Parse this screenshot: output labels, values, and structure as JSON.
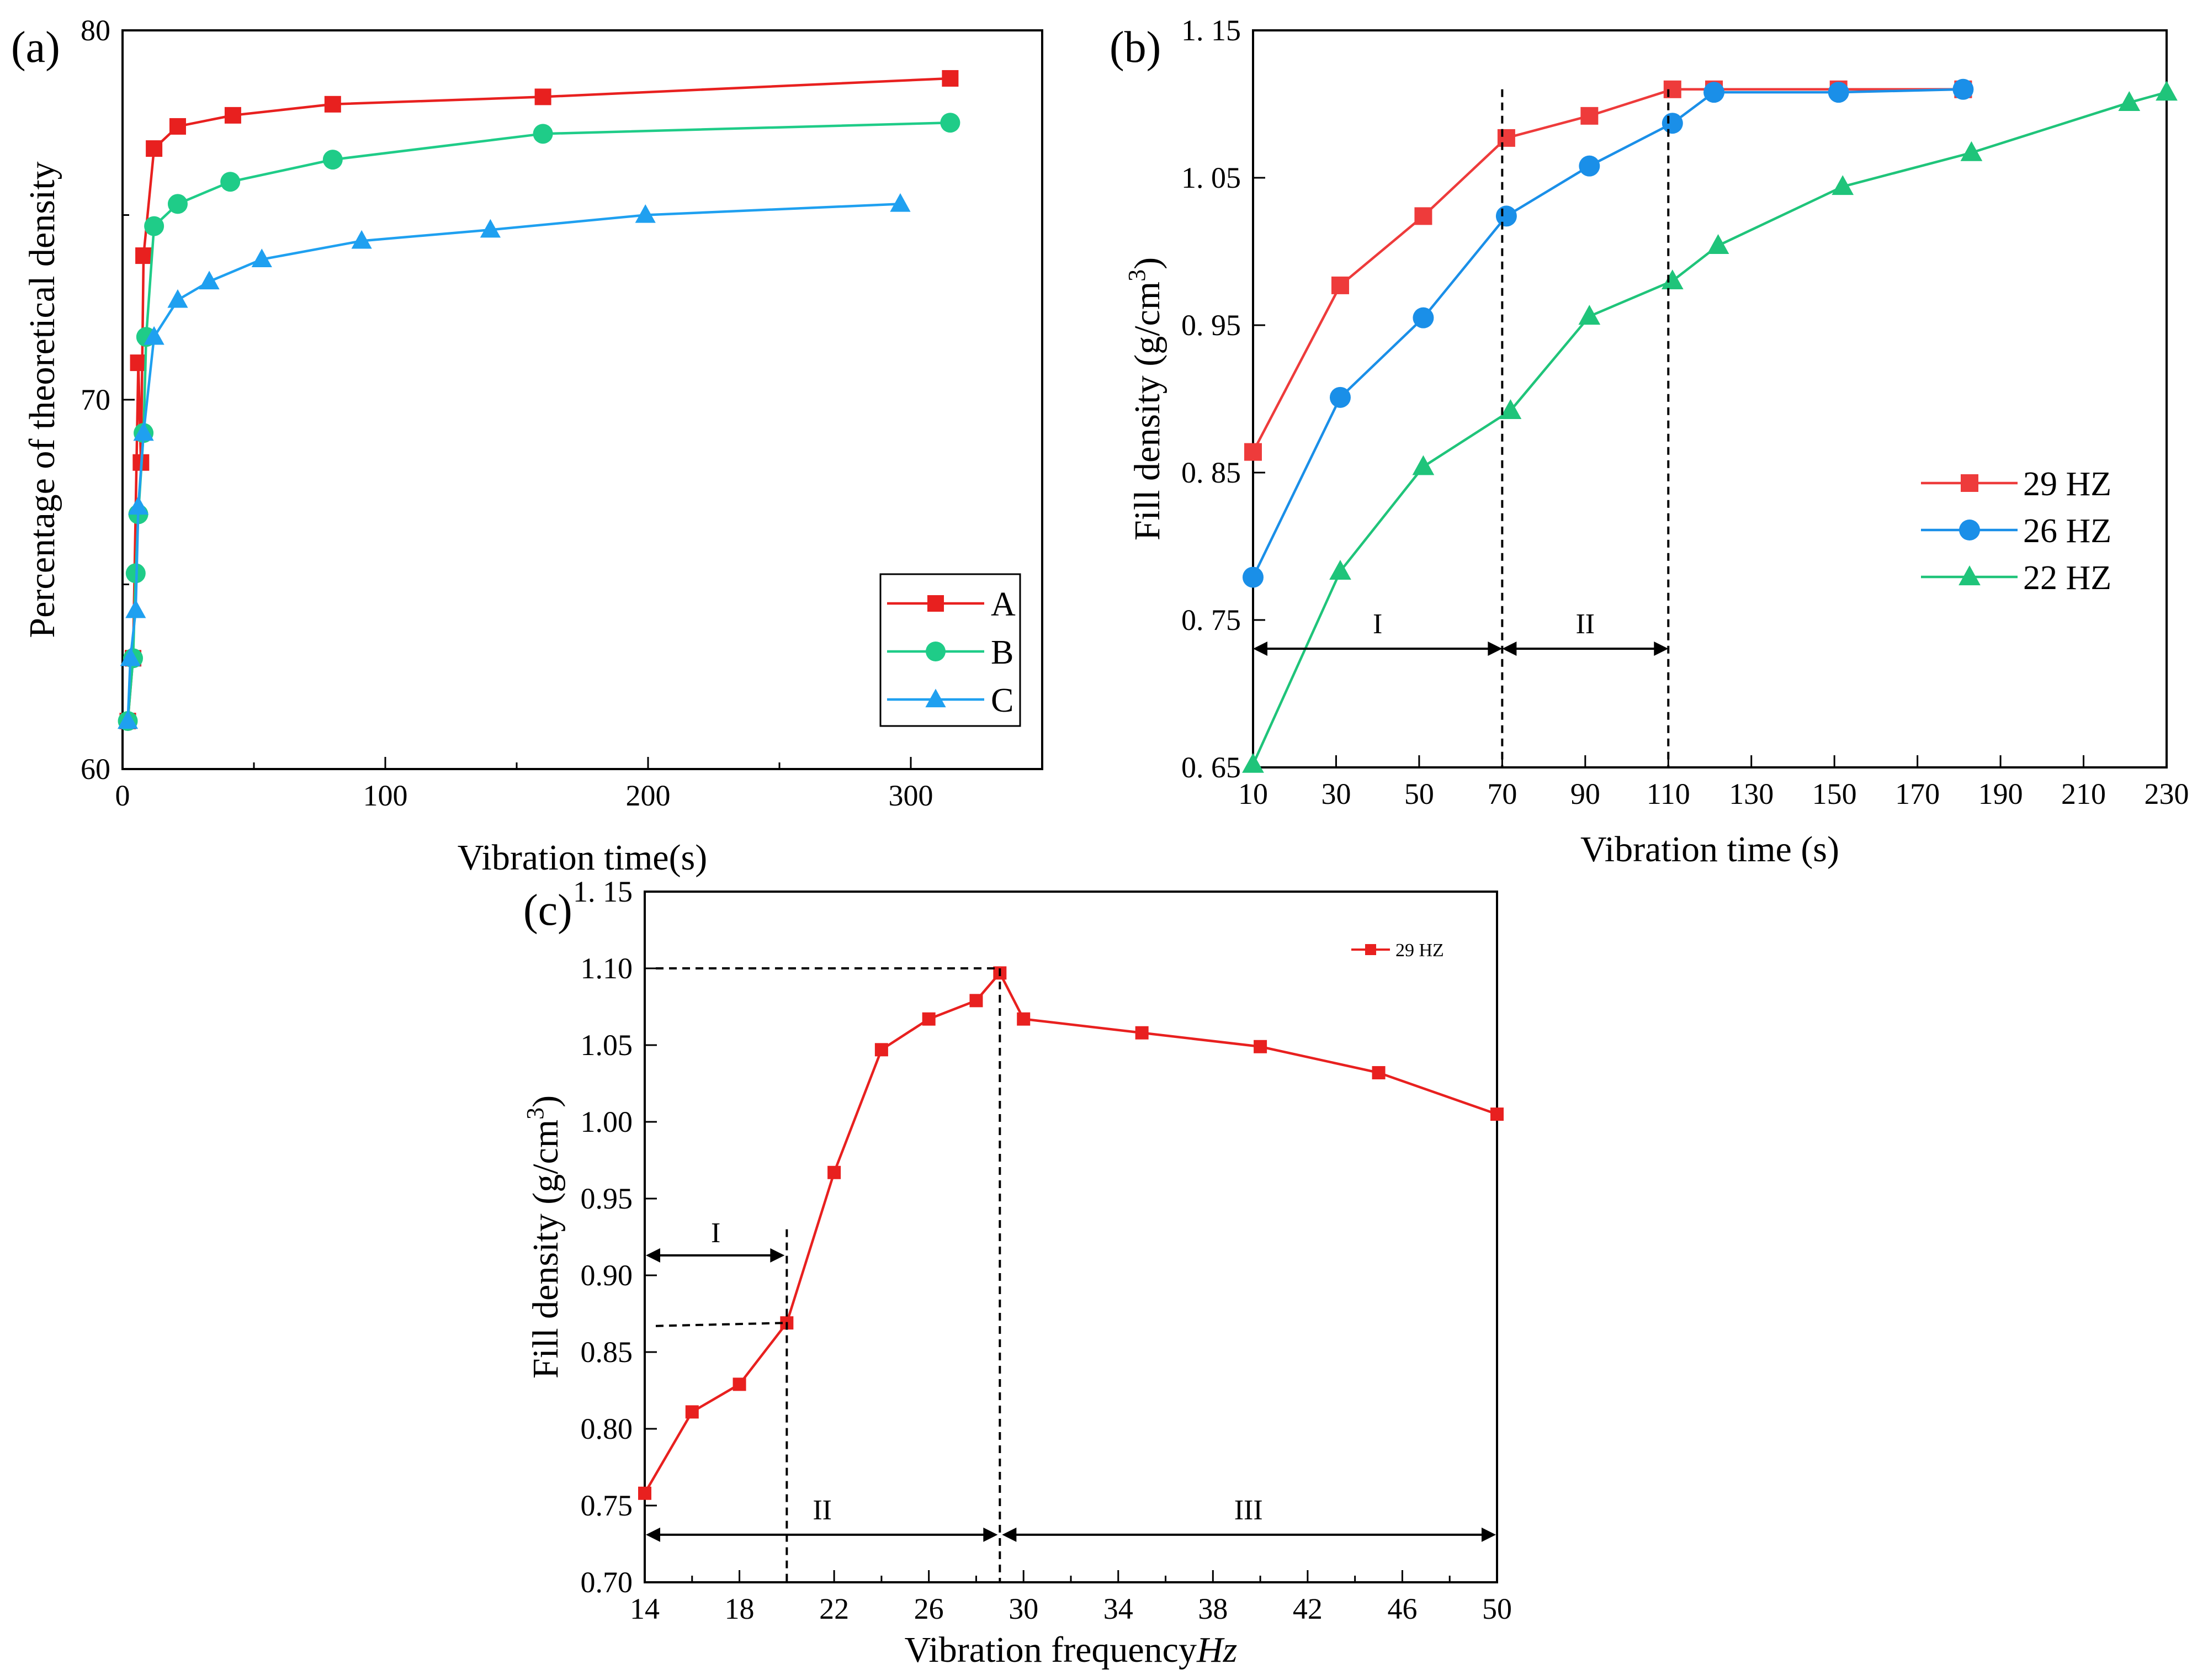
{
  "chart_data": [
    {
      "id": "a",
      "type": "line",
      "panel_label": "(a)",
      "xlabel": "Vibration time(s)",
      "ylabel": "Percentage of theoretical density",
      "xlim": [
        0,
        350
      ],
      "ylim": [
        60,
        80
      ],
      "xticks": [
        0,
        100,
        200,
        300
      ],
      "xtick_labels": [
        "0",
        "100",
        "200",
        "300"
      ],
      "yticks": [
        60,
        70,
        80
      ],
      "ytick_labels": [
        "60",
        "70",
        "80"
      ],
      "legend_position": "bottom-right",
      "series": [
        {
          "name": "A",
          "color": "#e8201f",
          "marker": "square",
          "x": [
            2,
            4,
            6,
            7,
            8,
            12,
            21,
            42,
            80,
            160,
            315
          ],
          "y": [
            61.3,
            63.0,
            71.0,
            68.3,
            73.9,
            76.8,
            77.4,
            77.7,
            78.0,
            78.2,
            78.7
          ]
        },
        {
          "name": "B",
          "color": "#1fcc88",
          "marker": "circle",
          "x": [
            2,
            4,
            5,
            6,
            8,
            9,
            12,
            21,
            41,
            80,
            160,
            315
          ],
          "y": [
            61.3,
            63.0,
            65.3,
            66.9,
            69.1,
            71.7,
            74.7,
            75.3,
            75.9,
            76.5,
            77.2,
            77.5
          ]
        },
        {
          "name": "C",
          "color": "#1fa0f0",
          "marker": "triangle",
          "x": [
            2,
            3,
            5,
            6,
            8,
            12,
            21,
            33,
            53,
            91,
            140,
            199,
            296
          ],
          "y": [
            61.3,
            63.0,
            64.3,
            67.1,
            69.1,
            71.7,
            72.7,
            73.2,
            73.8,
            74.3,
            74.6,
            75.0,
            75.3
          ]
        }
      ]
    },
    {
      "id": "b",
      "type": "line",
      "panel_label": "(b)",
      "xlabel": "Vibration time (s)",
      "ylabel": "Fill density (g/cm",
      "ylabel_sup": "3",
      "ylabel_close": ")",
      "xlim": [
        10,
        230
      ],
      "ylim": [
        0.65,
        1.15
      ],
      "xticks": [
        10,
        30,
        50,
        70,
        90,
        110,
        130,
        150,
        170,
        190,
        210,
        230
      ],
      "xtick_labels": [
        "10",
        "30",
        "50",
        "70",
        "90",
        "110",
        "130",
        "150",
        "170",
        "190",
        "210",
        "230"
      ],
      "yticks": [
        0.65,
        0.75,
        0.85,
        0.95,
        1.05,
        1.15
      ],
      "ytick_labels": [
        "0. 65",
        "0. 75",
        "0. 85",
        "0. 95",
        "1. 05",
        "1. 15"
      ],
      "legend_position": "right",
      "series": [
        {
          "name": "29 HZ",
          "color": "#ee3b3b",
          "marker": "square",
          "x": [
            10,
            31,
            51,
            71,
            91,
            111,
            121,
            151,
            181
          ],
          "y": [
            0.864,
            0.977,
            1.024,
            1.077,
            1.092,
            1.11,
            1.11,
            1.11,
            1.11
          ]
        },
        {
          "name": "26 HZ",
          "color": "#1a8fe8",
          "marker": "circle",
          "x": [
            10,
            31,
            51,
            71,
            91,
            111,
            121,
            151,
            181
          ],
          "y": [
            0.779,
            0.901,
            0.955,
            1.024,
            1.058,
            1.087,
            1.108,
            1.108,
            1.11
          ]
        },
        {
          "name": "22 HZ",
          "color": "#1fc47a",
          "marker": "triangle",
          "x": [
            10,
            31,
            51,
            72,
            91,
            111,
            122,
            152,
            183,
            221,
            230
          ],
          "y": [
            0.652,
            0.783,
            0.854,
            0.892,
            0.956,
            0.98,
            1.004,
            1.044,
            1.067,
            1.101,
            1.108
          ]
        }
      ],
      "regions": [
        {
          "label": "I",
          "from": 10,
          "to": 70
        },
        {
          "label": "II",
          "from": 70,
          "to": 110
        }
      ],
      "boundaries": [
        70,
        110
      ]
    },
    {
      "id": "c",
      "type": "line",
      "panel_label": "(c)",
      "xlabel": "Vibration frequency",
      "xlabel_unit": "Hz",
      "ylabel": "Fill density (g/cm",
      "ylabel_sup": "3",
      "ylabel_close": ")",
      "xlim": [
        14,
        50
      ],
      "ylim": [
        0.7,
        1.15
      ],
      "xticks": [
        14,
        18,
        22,
        26,
        30,
        34,
        38,
        42,
        46,
        50
      ],
      "xtick_labels": [
        "14",
        "18",
        "22",
        "26",
        "30",
        "34",
        "38",
        "42",
        "46",
        "50"
      ],
      "yticks": [
        0.7,
        0.75,
        0.8,
        0.85,
        0.9,
        0.95,
        1.0,
        1.05,
        1.1,
        1.15
      ],
      "ytick_labels": [
        "0.70",
        "0.75",
        "0.80",
        "0.85",
        "0.90",
        "0.95",
        "1.00",
        "1.05",
        "1.10",
        "1. 15"
      ],
      "legend_position": "top-right",
      "series": [
        {
          "name": "29 HZ",
          "color": "#e8201f",
          "marker": "square",
          "x": [
            14,
            16,
            18,
            20,
            22,
            24,
            26,
            28,
            29,
            30,
            35,
            40,
            45,
            50
          ],
          "y": [
            0.758,
            0.811,
            0.829,
            0.869,
            0.967,
            1.047,
            1.067,
            1.079,
            1.097,
            1.067,
            1.058,
            1.049,
            1.032,
            1.005
          ]
        }
      ],
      "regions": [
        {
          "label": "I",
          "from": 14,
          "to": 20
        },
        {
          "label": "II",
          "from": 14,
          "to": 29
        },
        {
          "label": "III",
          "from": 29,
          "to": 50
        }
      ],
      "boundaries": [
        20,
        29
      ],
      "reference_levels": [
        0.869,
        1.1
      ]
    }
  ]
}
